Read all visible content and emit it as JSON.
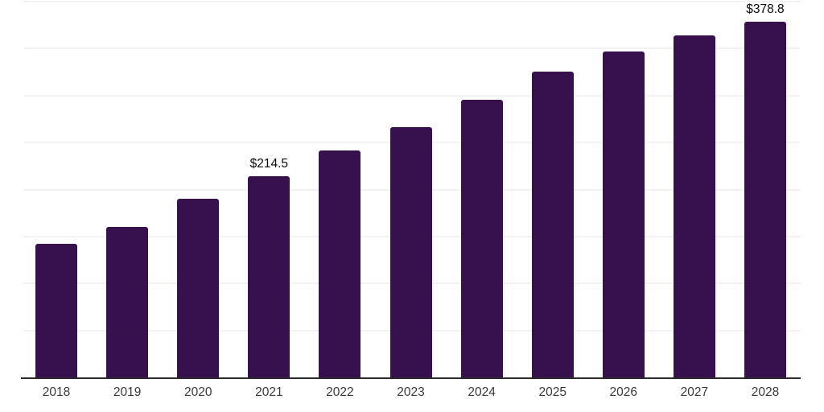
{
  "chart_data": {
    "type": "bar",
    "categories": [
      "2018",
      "2019",
      "2020",
      "2021",
      "2022",
      "2023",
      "2024",
      "2025",
      "2026",
      "2027",
      "2028"
    ],
    "values": [
      142.4,
      160.3,
      190.2,
      214.5,
      241.4,
      266.1,
      295.2,
      325.9,
      347.2,
      364.3,
      378.8
    ],
    "annotations": [
      {
        "category": "2021",
        "text": "$214.5"
      },
      {
        "category": "2028",
        "text": "$378.8"
      }
    ],
    "value_prefix": "$",
    "ylim": [
      0,
      400
    ],
    "grid_step": 50,
    "grid": "on",
    "legend": "none",
    "y_axis_labels": "none"
  },
  "colors": {
    "background": "#ffffff",
    "bar": "#37114D",
    "gridline": "#f2f2f4",
    "axis_line": "#2a2a2a",
    "tick_label": "#3a3a3a",
    "data_label": "#0a0a0a"
  }
}
